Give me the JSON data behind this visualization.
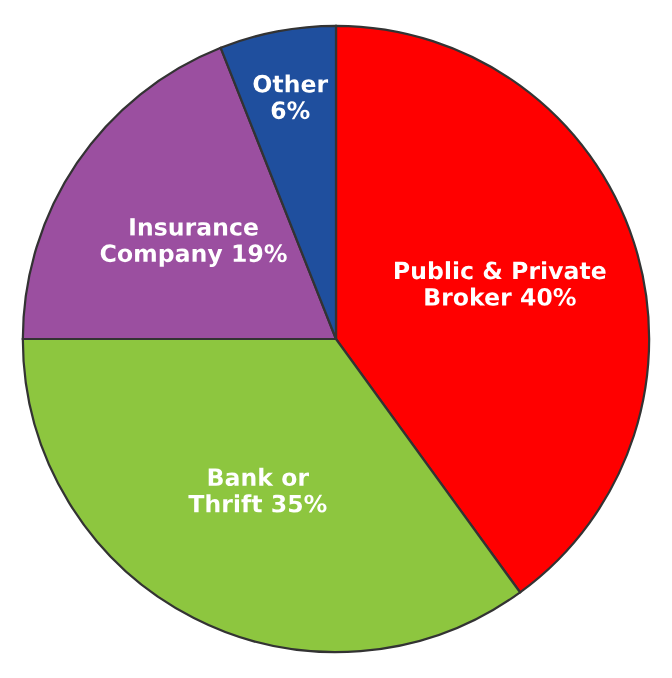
{
  "chart_data": {
    "type": "pie",
    "categories": [
      "Public & Private\nBroker",
      "Bank or\nThrift",
      "Insurance\nCompany",
      "Other"
    ],
    "values": [
      40,
      35,
      19,
      6
    ],
    "value_labels": [
      "40%",
      "35%",
      "19%",
      "6%"
    ],
    "colors": [
      "#ff0000",
      "#8dc63f",
      "#9b4fa0",
      "#1f4f9e"
    ],
    "legend": false
  }
}
